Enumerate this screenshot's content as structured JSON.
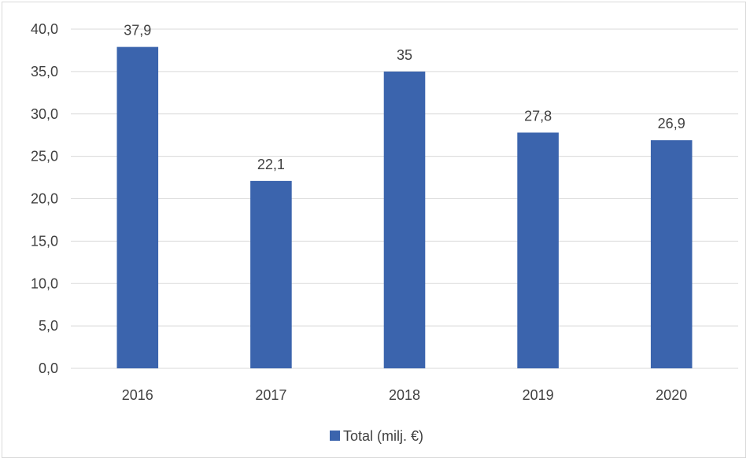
{
  "chart_data": {
    "type": "bar",
    "categories": [
      "2016",
      "2017",
      "2018",
      "2019",
      "2020"
    ],
    "series": [
      {
        "name": "Total (milj. €)",
        "values": [
          37.9,
          22.1,
          35,
          27.8,
          26.9
        ],
        "labels": [
          "37,9",
          "22,1",
          "35",
          "27,8",
          "26,9"
        ],
        "color": "#3B64AD"
      }
    ],
    "y_ticks": [
      "0,0",
      "5,0",
      "10,0",
      "15,0",
      "20,0",
      "25,0",
      "30,0",
      "35,0",
      "40,0"
    ],
    "ylim": [
      0,
      40
    ],
    "y_step": 5,
    "grid": true,
    "gridline_color": "#d9d9d9",
    "legend_position": "bottom",
    "title": "",
    "xlabel": "",
    "ylabel": ""
  }
}
